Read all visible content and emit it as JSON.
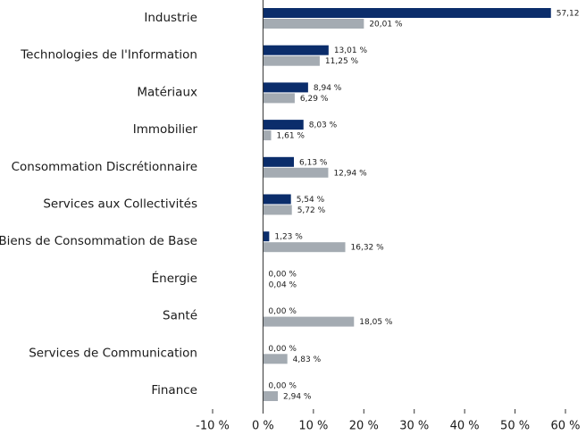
{
  "chart_data": {
    "type": "bar",
    "orientation": "horizontal",
    "categories": [
      "Industrie",
      "Technologies de l'Information",
      "Matériaux",
      "Immobilier",
      "Consommation Discrétionnaire",
      "Services aux Collectivités",
      "Biens de Consommation de Base",
      "Énergie",
      "Santé",
      "Services de Communication",
      "Finance"
    ],
    "series": [
      {
        "color": "#0b2d6b",
        "values": [
          57.12,
          13.01,
          8.94,
          8.03,
          6.13,
          5.54,
          1.23,
          0.0,
          0.0,
          0.0,
          0.0
        ],
        "value_labels": [
          "57,12",
          "13,01 %",
          "8,94 %",
          "8,03 %",
          "6,13 %",
          "5,54 %",
          "1,23 %",
          "0,00 %",
          "0,00 %",
          "0,00 %",
          "0,00 %"
        ]
      },
      {
        "color": "#a4abb2",
        "values": [
          20.01,
          11.25,
          6.29,
          1.61,
          12.94,
          5.72,
          16.32,
          0.04,
          18.05,
          4.83,
          2.94
        ],
        "value_labels": [
          "20,01 %",
          "11,25 %",
          "6,29 %",
          "1,61 %",
          "12,94 %",
          "5,72 %",
          "16,32 %",
          "0,04 %",
          "18,05 %",
          "4,83 %",
          "2,94 %"
        ]
      }
    ],
    "xlim": [
      -10,
      60
    ],
    "xticks": [
      {
        "value": -10,
        "label": "-10 %"
      },
      {
        "value": 0,
        "label": "0 %"
      },
      {
        "value": 10,
        "label": "10 %"
      },
      {
        "value": 20,
        "label": "20 %"
      },
      {
        "value": 30,
        "label": "30 %"
      },
      {
        "value": 40,
        "label": "40 %"
      },
      {
        "value": 50,
        "label": "50 %"
      },
      {
        "value": 60,
        "label": "60 %"
      }
    ]
  }
}
